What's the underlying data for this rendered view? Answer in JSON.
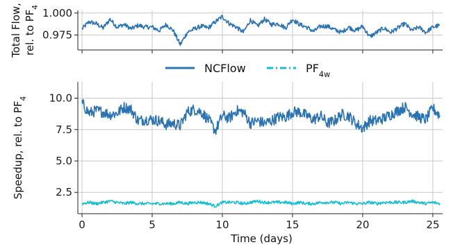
{
  "chart_data": [
    {
      "type": "line",
      "xlim": [
        -0.3,
        25.7
      ],
      "ylim": [
        0.958,
        1.003
      ],
      "grid": true,
      "x_ticks": [
        0,
        5,
        10,
        15,
        20,
        25
      ],
      "y_ticks": [
        0.975,
        1.0
      ],
      "y_tick_labels": [
        "0.975",
        "1.000"
      ],
      "ylabel": [
        "Total Flow,",
        "rel. to PF"
      ],
      "ylabel_subscript": "4",
      "series": [
        {
          "name": "NCFlow",
          "color": "#2b72b0",
          "x": [
            0,
            0.5,
            1,
            1.5,
            2,
            2.5,
            3,
            3.5,
            4,
            4.5,
            5,
            5.5,
            6,
            6.5,
            7,
            7.5,
            8,
            8.5,
            9,
            9.5,
            10,
            10.5,
            11,
            11.5,
            12,
            12.5,
            13,
            13.5,
            14,
            14.5,
            15,
            15.5,
            16,
            16.5,
            17,
            17.5,
            18,
            18.5,
            19,
            19.5,
            20,
            20.5,
            21,
            21.5,
            22,
            22.5,
            23,
            23.5,
            24,
            24.5,
            25,
            25.5
          ],
          "y": [
            0.982,
            0.99,
            0.988,
            0.983,
            0.993,
            0.984,
            0.987,
            0.982,
            0.986,
            0.984,
            0.984,
            0.98,
            0.987,
            0.98,
            0.964,
            0.978,
            0.982,
            0.985,
            0.983,
            0.99,
            0.996,
            0.988,
            0.984,
            0.978,
            0.992,
            0.985,
            0.993,
            0.987,
            0.988,
            0.983,
            0.993,
            0.987,
            0.984,
            0.979,
            0.985,
            0.985,
            0.981,
            0.978,
            0.984,
            0.98,
            0.985,
            0.973,
            0.978,
            0.983,
            0.978,
            0.983,
            0.988,
            0.98,
            0.984,
            0.978,
            0.984,
            0.986
          ]
        }
      ]
    },
    {
      "type": "line",
      "xlim": [
        -0.3,
        25.7
      ],
      "ylim": [
        0.8,
        11.3
      ],
      "grid": true,
      "x_ticks": [
        0,
        5,
        10,
        15,
        20,
        25
      ],
      "x_tick_labels": [
        "0",
        "5",
        "10",
        "15",
        "20",
        "25"
      ],
      "y_ticks": [
        2.5,
        5.0,
        7.5,
        10.0
      ],
      "y_tick_labels": [
        "2.5",
        "5.0",
        "7.5",
        "10.0"
      ],
      "xlabel": "Time (days)",
      "ylabel": [
        "Speedup, rel. to PF"
      ],
      "ylabel_subscript": "4",
      "legend": "top-center",
      "series": [
        {
          "name": "NCFlow",
          "color": "#2b72b0",
          "x": [
            0,
            0.5,
            1,
            1.5,
            2,
            2.5,
            3,
            3.5,
            4,
            4.5,
            5,
            5.5,
            6,
            6.5,
            7,
            7.5,
            8,
            8.5,
            9,
            9.5,
            10,
            10.5,
            11,
            11.5,
            12,
            12.5,
            13,
            13.5,
            14,
            14.5,
            15,
            15.5,
            16,
            16.5,
            17,
            17.5,
            18,
            18.5,
            19,
            19.5,
            20,
            20.5,
            21,
            21.5,
            22,
            22.5,
            23,
            23.5,
            24,
            24.5,
            25,
            25.5
          ],
          "y": [
            9.6,
            8.8,
            9.0,
            8.9,
            8.7,
            8.8,
            9.3,
            9.1,
            8.2,
            8.3,
            8.3,
            8.2,
            7.9,
            8.0,
            7.8,
            8.9,
            9.1,
            8.9,
            8.3,
            7.4,
            8.6,
            8.4,
            9.0,
            8.9,
            8.0,
            8.2,
            8.0,
            8.2,
            8.5,
            8.5,
            8.9,
            8.9,
            8.6,
            8.3,
            8.6,
            8.0,
            8.2,
            8.7,
            8.6,
            8.0,
            7.6,
            8.2,
            8.2,
            8.4,
            8.7,
            9.0,
            9.3,
            8.8,
            8.5,
            8.3,
            9.2,
            8.6
          ]
        },
        {
          "name": "PF",
          "name_subscript": "4w",
          "color": "#17becf",
          "x": [
            0,
            0.5,
            1,
            1.5,
            2,
            2.5,
            3,
            3.5,
            4,
            4.5,
            5,
            5.5,
            6,
            6.5,
            7,
            7.5,
            8,
            8.5,
            9,
            9.5,
            10,
            10.5,
            11,
            11.5,
            12,
            12.5,
            13,
            13.5,
            14,
            14.5,
            15,
            15.5,
            16,
            16.5,
            17,
            17.5,
            18,
            18.5,
            19,
            19.5,
            20,
            20.5,
            21,
            21.5,
            22,
            22.5,
            23,
            23.5,
            24,
            24.5,
            25,
            25.5
          ],
          "y": [
            1.6,
            1.7,
            1.6,
            1.7,
            1.8,
            1.7,
            1.6,
            1.7,
            1.6,
            1.6,
            1.6,
            1.6,
            1.6,
            1.6,
            1.7,
            1.6,
            1.7,
            1.7,
            1.6,
            1.4,
            1.7,
            1.7,
            1.7,
            1.6,
            1.7,
            1.8,
            1.7,
            1.7,
            1.7,
            1.7,
            1.6,
            1.7,
            1.6,
            1.6,
            1.7,
            1.7,
            1.7,
            1.6,
            1.7,
            1.6,
            1.6,
            1.7,
            1.6,
            1.7,
            1.7,
            1.7,
            1.7,
            1.8,
            1.7,
            1.6,
            1.7,
            1.6
          ]
        }
      ]
    }
  ]
}
